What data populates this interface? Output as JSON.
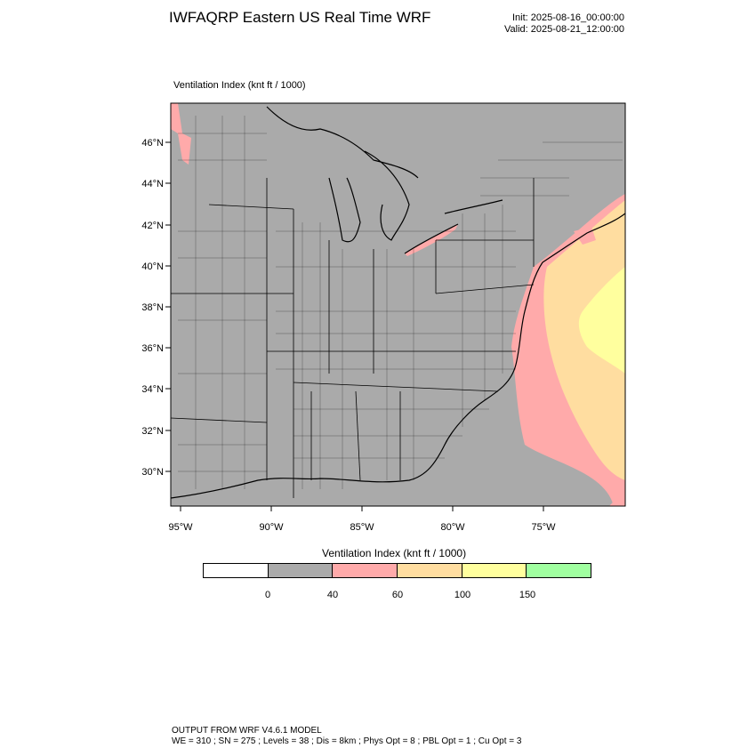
{
  "header": {
    "title": "IWFAQRP Eastern US Real Time WRF",
    "init": "Init: 2025-08-16_00:00:00",
    "valid": "Valid: 2025-08-21_12:00:00"
  },
  "map": {
    "label": "Ventilation Index   (knt ft / 1000)",
    "lat_labels": [
      "46°N",
      "44°N",
      "42°N",
      "40°N",
      "38°N",
      "36°N",
      "34°N",
      "32°N",
      "30°N"
    ],
    "lon_labels": [
      "95°W",
      "90°W",
      "85°W",
      "80°W",
      "75°W"
    ],
    "colors": {
      "land": "#aaaaaa",
      "low": "#ffaaaa",
      "mid": "#ffdda0",
      "high": "#ffff9e"
    }
  },
  "legend": {
    "title": "Ventilation Index  (knt ft / 1000)",
    "ticks": [
      "0",
      "40",
      "60",
      "100",
      "150"
    ],
    "colors": [
      "#ffffff",
      "#aaaaaa",
      "#ffaaaa",
      "#ffdda0",
      "#ffff9e",
      "#a0ffa0"
    ]
  },
  "footer": {
    "line1": "OUTPUT FROM WRF V4.6.1 MODEL",
    "line2": "WE = 310 ; SN = 275 ; Levels = 38 ; Dis = 8km ; Phys Opt = 8 ; PBL Opt = 1 ; Cu Opt = 3"
  }
}
